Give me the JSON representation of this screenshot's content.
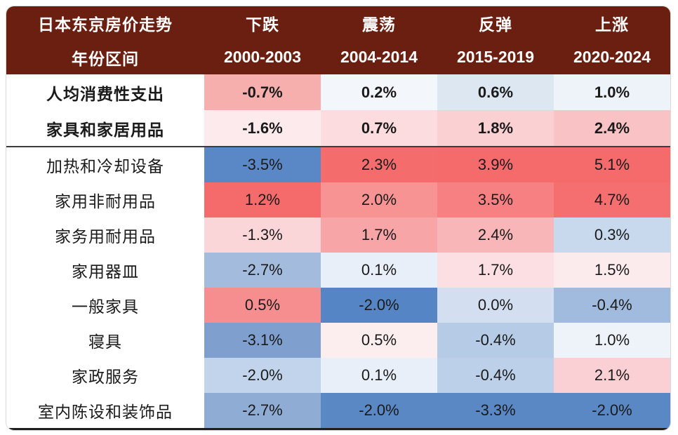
{
  "header": {
    "title": "日本东京房价走势",
    "subtitle": "年份区间",
    "bg_color": "#6B1F10",
    "columns": [
      {
        "trend": "下跌",
        "years": "2000-2003"
      },
      {
        "trend": "震荡",
        "years": "2004-2014"
      },
      {
        "trend": "反弹",
        "years": "2015-2019"
      },
      {
        "trend": "上涨",
        "years": "2020-2024"
      }
    ]
  },
  "table": {
    "rows": [
      {
        "label": "人均消费性支出",
        "bold": true,
        "values": [
          {
            "text": "-0.7%",
            "bg": "#F6AFAD"
          },
          {
            "text": "0.2%",
            "bg": "#F3F7FB"
          },
          {
            "text": "0.6%",
            "bg": "#DDE7F2"
          },
          {
            "text": "1.0%",
            "bg": "#EEF3FA"
          }
        ]
      },
      {
        "label": "家具和家居用品",
        "bold": true,
        "values": [
          {
            "text": "-1.6%",
            "bg": "#FDEAEC"
          },
          {
            "text": "0.7%",
            "bg": "#FCDCDE"
          },
          {
            "text": "1.8%",
            "bg": "#FBD0D3"
          },
          {
            "text": "2.4%",
            "bg": "#F9C2C5"
          }
        ]
      },
      {
        "label": "加热和冷却设备",
        "bold": false,
        "values": [
          {
            "text": "-3.5%",
            "bg": "#5A87C5"
          },
          {
            "text": "2.3%",
            "bg": "#F56C6D"
          },
          {
            "text": "3.9%",
            "bg": "#F56B6C"
          },
          {
            "text": "5.1%",
            "bg": "#F56A6B"
          }
        ]
      },
      {
        "label": "家用非耐用品",
        "bold": false,
        "values": [
          {
            "text": "1.2%",
            "bg": "#F56B6C"
          },
          {
            "text": "2.0%",
            "bg": "#F89394"
          },
          {
            "text": "3.5%",
            "bg": "#F78182"
          },
          {
            "text": "4.7%",
            "bg": "#F56F70"
          }
        ]
      },
      {
        "label": "家务用耐用品",
        "bold": false,
        "values": [
          {
            "text": "-1.3%",
            "bg": "#FBD6D9"
          },
          {
            "text": "1.7%",
            "bg": "#F7A5A6"
          },
          {
            "text": "2.4%",
            "bg": "#F9B6B8"
          },
          {
            "text": "0.3%",
            "bg": "#C8D9ED"
          }
        ]
      },
      {
        "label": "家用器皿",
        "bold": false,
        "values": [
          {
            "text": "-2.7%",
            "bg": "#A3BBDD"
          },
          {
            "text": "0.1%",
            "bg": "#E9EFF8"
          },
          {
            "text": "1.7%",
            "bg": "#FBDFE2"
          },
          {
            "text": "1.5%",
            "bg": "#FCEBED"
          }
        ]
      },
      {
        "label": "一般家具",
        "bold": false,
        "values": [
          {
            "text": "0.5%",
            "bg": "#F68E8F"
          },
          {
            "text": "-2.0%",
            "bg": "#5585C4"
          },
          {
            "text": "0.0%",
            "bg": "#D3DFF0"
          },
          {
            "text": "-0.4%",
            "bg": "#A0BBDD"
          }
        ]
      },
      {
        "label": "寝具",
        "bold": false,
        "values": [
          {
            "text": "-3.1%",
            "bg": "#7FA0CF"
          },
          {
            "text": "0.5%",
            "bg": "#FCEDEE"
          },
          {
            "text": "-0.4%",
            "bg": "#B5CBE6"
          },
          {
            "text": "1.0%",
            "bg": "#EEF3FA"
          }
        ]
      },
      {
        "label": "家政服务",
        "bold": false,
        "values": [
          {
            "text": "-2.0%",
            "bg": "#C2D4EB"
          },
          {
            "text": "0.1%",
            "bg": "#E9EFF8"
          },
          {
            "text": "-0.4%",
            "bg": "#BDD0E9"
          },
          {
            "text": "2.1%",
            "bg": "#FBD0D4"
          }
        ]
      },
      {
        "label": "室内陈设和装饰品",
        "bold": false,
        "values": [
          {
            "text": "-2.7%",
            "bg": "#8FACD5"
          },
          {
            "text": "-2.0%",
            "bg": "#5A88C5"
          },
          {
            "text": "-3.3%",
            "bg": "#5A88C5"
          },
          {
            "text": "-2.0%",
            "bg": "#5A88C5"
          }
        ]
      }
    ]
  },
  "chart_data": {
    "type": "heatmap",
    "title": "日本东京房价走势",
    "row_label_header": "年份区间",
    "columns": [
      {
        "trend": "下跌",
        "period": "2000-2003"
      },
      {
        "trend": "震荡",
        "period": "2004-2014"
      },
      {
        "trend": "反弹",
        "period": "2015-2019"
      },
      {
        "trend": "上涨",
        "period": "2020-2024"
      }
    ],
    "row_categories": [
      "人均消费性支出",
      "家具和家居用品",
      "加热和冷却设备",
      "家用非耐用品",
      "家务用耐用品",
      "家用器皿",
      "一般家具",
      "寝具",
      "家政服务",
      "室内陈设和装饰品"
    ],
    "values_percent": [
      [
        -0.7,
        0.2,
        0.6,
        1.0
      ],
      [
        -1.6,
        0.7,
        1.8,
        2.4
      ],
      [
        -3.5,
        2.3,
        3.9,
        5.1
      ],
      [
        1.2,
        2.0,
        3.5,
        4.7
      ],
      [
        -1.3,
        1.7,
        2.4,
        0.3
      ],
      [
        -2.7,
        0.1,
        1.7,
        1.5
      ],
      [
        0.5,
        -2.0,
        0.0,
        -0.4
      ],
      [
        -3.1,
        0.5,
        -0.4,
        1.0
      ],
      [
        -2.0,
        0.1,
        -0.4,
        2.1
      ],
      [
        -2.7,
        -2.0,
        -3.3,
        -2.0
      ]
    ],
    "colorscale": {
      "high_red": "#F5696B",
      "low_blue": "#5585C4",
      "mid_white": "#FFFFFF",
      "normalization": "per-column"
    },
    "header_bg": "#6B1F10",
    "legend_position": "none",
    "grid": false
  }
}
